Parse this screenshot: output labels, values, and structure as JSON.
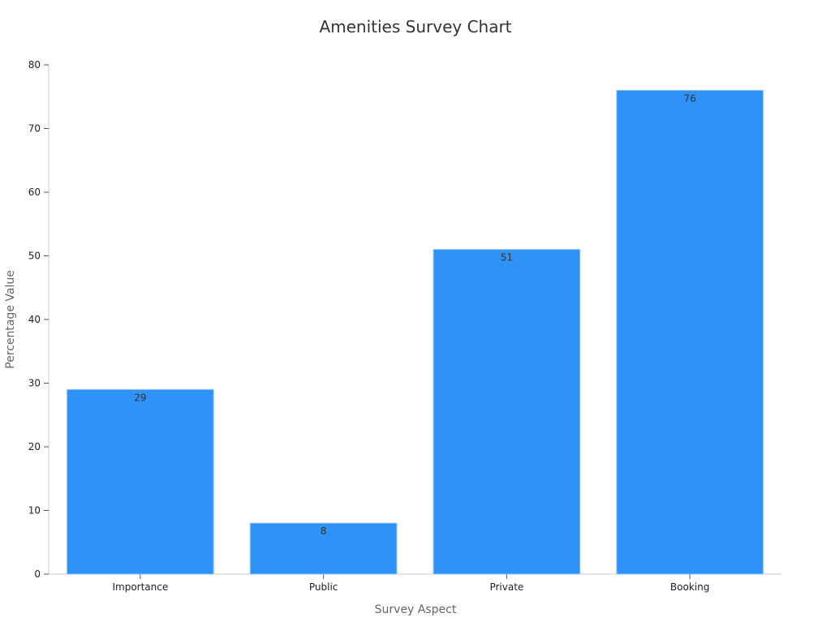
{
  "chart_data": {
    "type": "bar",
    "title": "Amenities Survey Chart",
    "xlabel": "Survey Aspect",
    "ylabel": "Percentage Value",
    "categories": [
      "Importance",
      "Public",
      "Private",
      "Booking"
    ],
    "values": [
      29,
      8,
      51,
      76
    ],
    "ylim": [
      0,
      80
    ],
    "yticks": [
      0,
      10,
      20,
      30,
      40,
      50,
      60,
      70,
      80
    ],
    "grid": false,
    "legend": "none",
    "bar_color": "#2f92f8",
    "bar_stroke": "#8cc4ff"
  }
}
